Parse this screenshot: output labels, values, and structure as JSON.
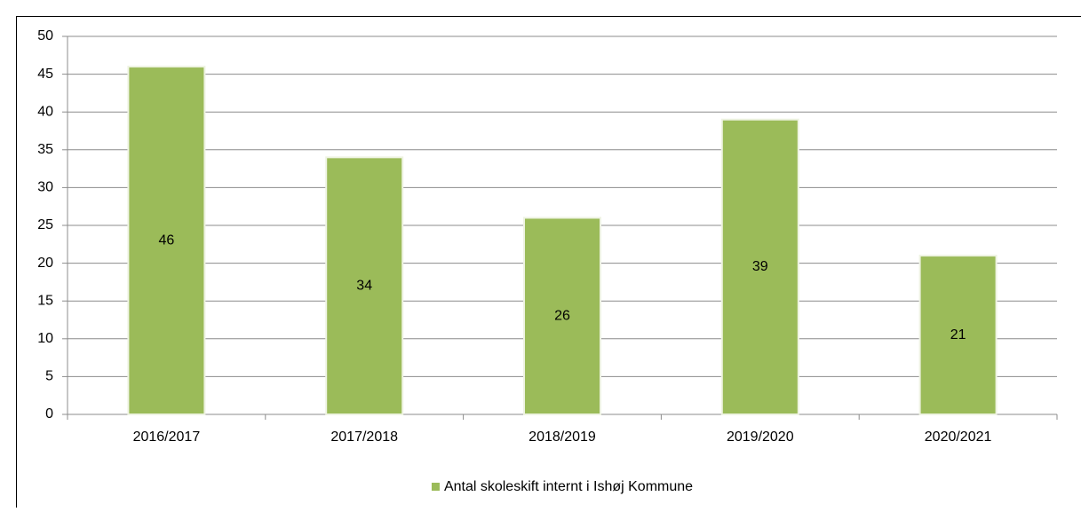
{
  "chart_data": {
    "type": "bar",
    "categories": [
      "2016/2017",
      "2017/2018",
      "2018/2019",
      "2019/2020",
      "2020/2021"
    ],
    "series": [
      {
        "name": "Antal skoleskift internt i Ishøj Kommune",
        "color": "#9bbb59",
        "values": [
          46,
          34,
          26,
          39,
          21
        ]
      }
    ],
    "ylim": [
      0,
      50
    ],
    "yticks": [
      0,
      5,
      10,
      15,
      20,
      25,
      30,
      35,
      40,
      45,
      50
    ],
    "grid": true,
    "legend": "bottom"
  }
}
